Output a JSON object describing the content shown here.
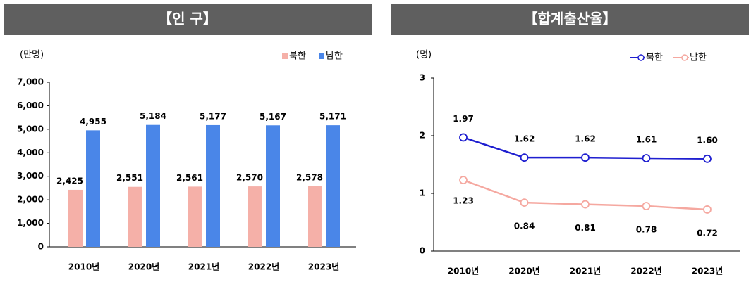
{
  "chart_data": [
    {
      "type": "bar",
      "title": "【인 구】",
      "y_label": "(만명)",
      "categories": [
        "2010년",
        "2020년",
        "2021년",
        "2022년",
        "2023년"
      ],
      "series": [
        {
          "name": "북한",
          "color": "#f5b0a8",
          "values": [
            2425,
            2551,
            2561,
            2570,
            2578
          ],
          "value_labels": [
            "2,425",
            "2,551",
            "2,561",
            "2,570",
            "2,578"
          ]
        },
        {
          "name": "남한",
          "color": "#4a86e8",
          "values": [
            4955,
            5184,
            5177,
            5167,
            5171
          ],
          "value_labels": [
            "4,955",
            "5,184",
            "5,177",
            "5,167",
            "5,171"
          ]
        }
      ],
      "ylim": [
        0,
        7000
      ],
      "yticks": [
        0,
        {
          "value": 1000,
          "label": "1,000"
        },
        {
          "value": 2000,
          "label": "2,000"
        },
        {
          "value": 3000,
          "label": "3,000"
        },
        {
          "value": 4000,
          "label": "4,000"
        },
        {
          "value": 5000,
          "label": "5,000"
        },
        {
          "value": 6000,
          "label": "6,000"
        },
        {
          "value": 7000,
          "label": "7,000"
        }
      ],
      "legend": "top-right"
    },
    {
      "type": "line",
      "title": "【합계출산율】",
      "y_label": "(명)",
      "categories": [
        "2010년",
        "2020년",
        "2021년",
        "2022년",
        "2023년"
      ],
      "series": [
        {
          "name": "북한",
          "color": "#1f1fd0",
          "values": [
            1.97,
            1.62,
            1.62,
            1.61,
            1.6
          ],
          "value_labels": [
            "1.97",
            "1.62",
            "1.62",
            "1.61",
            "1.60"
          ]
        },
        {
          "name": "남한",
          "color": "#f5a8a0",
          "values": [
            1.23,
            0.84,
            0.81,
            0.78,
            0.72
          ],
          "value_labels": [
            "1.23",
            "0.84",
            "0.81",
            "0.78",
            "0.72"
          ]
        }
      ],
      "ylim": [
        0,
        3
      ],
      "yticks": [
        0,
        1,
        2,
        3
      ],
      "legend": "top-right"
    }
  ]
}
